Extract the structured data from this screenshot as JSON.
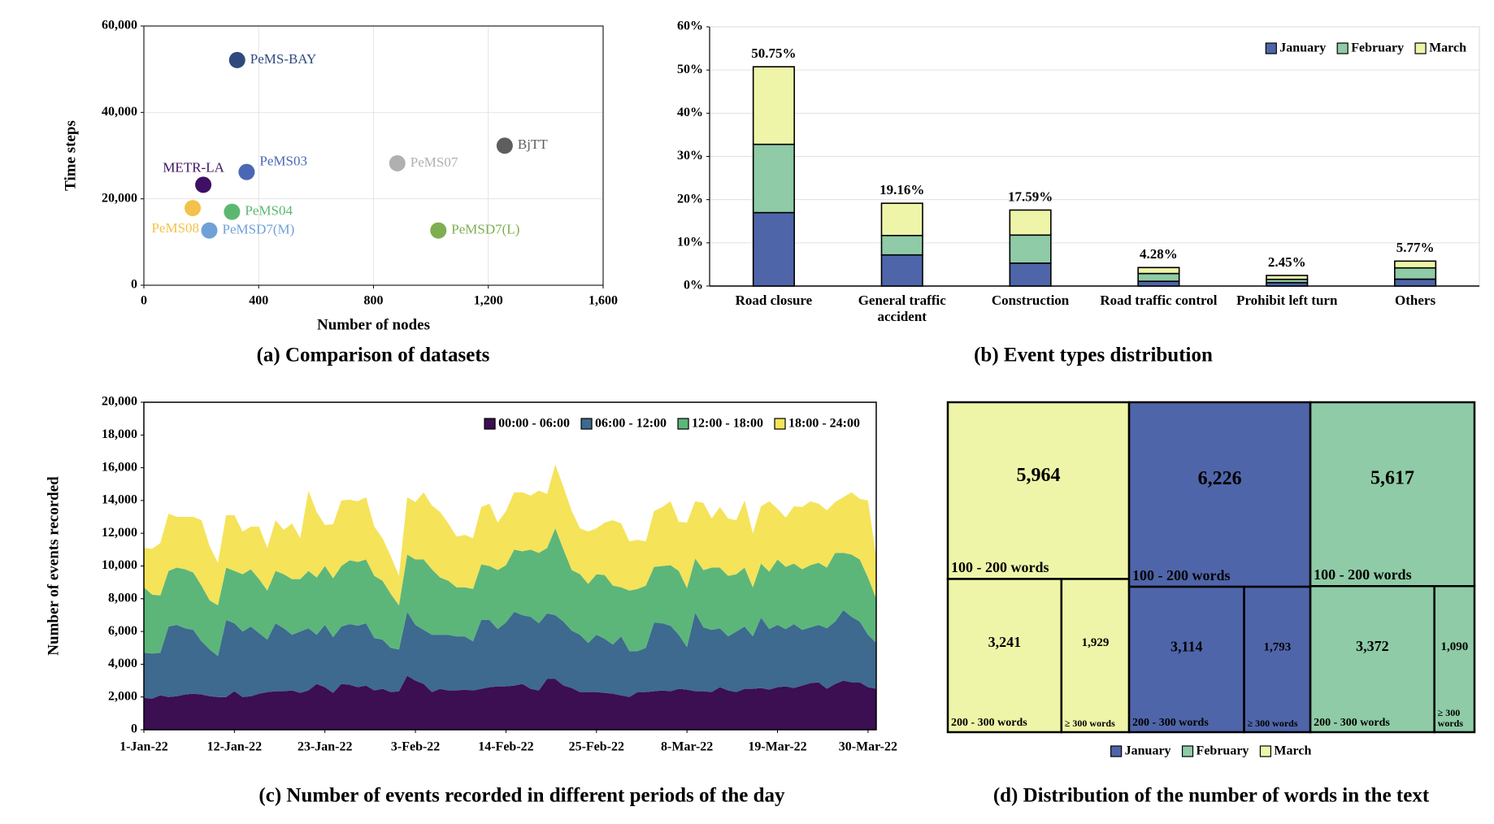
{
  "chart_data": [
    {
      "type": "scatter",
      "title": "(a) Comparison of datasets",
      "x_label": "Number of nodes",
      "y_label": "Time steps",
      "xlim": [
        0,
        1600
      ],
      "xticks": [
        0,
        400,
        800,
        {
          "value": 1200,
          "label": "1,200"
        },
        {
          "value": 1600,
          "label": "1,600"
        }
      ],
      "ylim": [
        0,
        60000
      ],
      "yticks": [
        0,
        {
          "value": 20000,
          "label": "20,000"
        },
        {
          "value": 40000,
          "label": "40,000"
        },
        {
          "value": 60000,
          "label": "60,000"
        }
      ],
      "grid": true,
      "series": [
        {
          "name": "PeMS-BAY",
          "color": "#2e4a7d",
          "x": [
            325
          ],
          "values": [
            52116
          ]
        },
        {
          "name": "BjTT",
          "color": "#5e5e5e",
          "x": [
            1257
          ],
          "values": [
            32300
          ]
        },
        {
          "name": "PeMS07",
          "color": "#b0b0b0",
          "x": [
            883
          ],
          "values": [
            28224
          ]
        },
        {
          "name": "PeMS03",
          "color": "#4a67b5",
          "x": [
            358
          ],
          "values": [
            26208
          ]
        },
        {
          "name": "METR-LA",
          "color": "#3d1063",
          "x": [
            207
          ],
          "values": [
            23250
          ]
        },
        {
          "name": "PeMS04",
          "color": "#5cb870",
          "x": [
            307
          ],
          "values": [
            16992
          ]
        },
        {
          "name": "PeMS08",
          "color": "#f3c24a",
          "x": [
            170
          ],
          "values": [
            17856
          ]
        },
        {
          "name": "PeMSD7(M)",
          "color": "#6fa1d8",
          "x": [
            228
          ],
          "values": [
            12672
          ]
        },
        {
          "name": "PeMSD7(L)",
          "color": "#7fae50",
          "x": [
            1026
          ],
          "values": [
            12672
          ]
        }
      ]
    },
    {
      "type": "bar",
      "title": "(b) Event types distribution",
      "stacked": true,
      "legend": "upper right",
      "grid": true,
      "categories": [
        "Road closure",
        "General traffic accident",
        "Construction",
        "Road traffic control",
        "Prohibit left turn",
        "Others"
      ],
      "ylim": [
        0,
        60
      ],
      "yticks": [
        {
          "value": 0,
          "label": "0%"
        },
        {
          "value": 10,
          "label": "10%"
        },
        {
          "value": 20,
          "label": "20%"
        },
        {
          "value": 30,
          "label": "30%"
        },
        {
          "value": 40,
          "label": "40%"
        },
        {
          "value": 50,
          "label": "50%"
        },
        {
          "value": 60,
          "label": "60%"
        }
      ],
      "series": [
        {
          "name": "January",
          "color": "#4f65a9",
          "values": [
            17,
            7.2,
            5.3,
            1.1,
            0.8,
            1.6
          ]
        },
        {
          "name": "February",
          "color": "#8ecba6",
          "values": [
            15.8,
            4.5,
            6.5,
            1.8,
            0.75,
            2.6
          ]
        },
        {
          "name": "March",
          "color": "#eef5a8",
          "values": [
            17.95,
            7.46,
            5.79,
            1.38,
            0.9,
            1.57
          ]
        }
      ],
      "totals": [
        50.75,
        19.16,
        17.59,
        4.28,
        2.45,
        5.77
      ],
      "value_labels": [
        "50.75%",
        "19.16%",
        "17.59%",
        "4.28%",
        "2.45%",
        "5.77%"
      ]
    },
    {
      "type": "area",
      "title": "(c) Number of events recorded in different periods of the day",
      "y_label": "Number of events recorded",
      "stacked": true,
      "legend": "upper right",
      "ylim": [
        0,
        20000
      ],
      "yticks": [
        0,
        {
          "value": 2000,
          "label": "2,000"
        },
        {
          "value": 4000,
          "label": "4,000"
        },
        {
          "value": 6000,
          "label": "6,000"
        },
        {
          "value": 8000,
          "label": "8,000"
        },
        {
          "value": 10000,
          "label": "10,000"
        },
        {
          "value": 12000,
          "label": "12,000"
        },
        {
          "value": 14000,
          "label": "14,000"
        },
        {
          "value": 16000,
          "label": "16,000"
        },
        {
          "value": 18000,
          "label": "18,000"
        },
        {
          "value": 20000,
          "label": "20,000"
        }
      ],
      "categories": [
        "1-Jan-22",
        null,
        null,
        null,
        null,
        null,
        null,
        null,
        null,
        null,
        null,
        "12-Jan-22",
        null,
        null,
        null,
        null,
        null,
        null,
        null,
        null,
        null,
        null,
        "23-Jan-22",
        null,
        null,
        null,
        null,
        null,
        null,
        null,
        null,
        null,
        null,
        "3-Feb-22",
        null,
        null,
        null,
        null,
        null,
        null,
        null,
        null,
        null,
        null,
        "14-Feb-22",
        null,
        null,
        null,
        null,
        null,
        null,
        null,
        null,
        null,
        null,
        "25-Feb-22",
        null,
        null,
        null,
        null,
        null,
        null,
        null,
        null,
        null,
        null,
        "8-Mar-22",
        null,
        null,
        null,
        null,
        null,
        null,
        null,
        null,
        null,
        null,
        "19-Mar-22",
        null,
        null,
        null,
        null,
        null,
        null,
        null,
        null,
        null,
        null,
        "30-Mar-22",
        null
      ],
      "series": [
        {
          "name": "00:00 - 06:00",
          "color": "#3b0f52",
          "values": [
            1950,
            1900,
            2100,
            2000,
            2050,
            2150,
            2200,
            2150,
            2050,
            2000,
            2000,
            2350,
            2000,
            2050,
            2200,
            2300,
            2350,
            2350,
            2400,
            2250,
            2400,
            2800,
            2600,
            2250,
            2800,
            2750,
            2600,
            2700,
            2400,
            2500,
            2300,
            2350,
            3300,
            3000,
            2800,
            2300,
            2500,
            2400,
            2400,
            2450,
            2400,
            2500,
            2600,
            2650,
            2650,
            2700,
            2800,
            2500,
            2400,
            3100,
            3100,
            2700,
            2550,
            2300,
            2300,
            2300,
            2250,
            2200,
            2100,
            2000,
            2300,
            2300,
            2350,
            2400,
            2350,
            2500,
            2450,
            2350,
            2350,
            2300,
            2600,
            2400,
            2300,
            2500,
            2500,
            2550,
            2450,
            2600,
            2650,
            2550,
            2700,
            2850,
            2900,
            2500,
            2800,
            3000,
            2900,
            2900,
            2600,
            2500
          ]
        },
        {
          "name": "06:00 - 12:00",
          "color": "#3d6a8e",
          "values": [
            2750,
            2750,
            2600,
            4300,
            4350,
            4050,
            3900,
            3250,
            2850,
            2500,
            4700,
            4150,
            4000,
            4250,
            3700,
            3200,
            4150,
            3850,
            3400,
            3750,
            3800,
            3000,
            3800,
            3400,
            3500,
            3700,
            3750,
            3800,
            3200,
            3000,
            2700,
            2550,
            3900,
            3400,
            3300,
            3500,
            3300,
            3400,
            3300,
            3250,
            3000,
            4200,
            4100,
            3500,
            3900,
            4500,
            4200,
            4400,
            4100,
            4000,
            3900,
            3900,
            3500,
            3500,
            3000,
            3500,
            3300,
            3000,
            3600,
            2800,
            2500,
            2700,
            4200,
            4100,
            4000,
            3300,
            2600,
            4800,
            3900,
            3800,
            3600,
            3300,
            3700,
            3800,
            3200,
            4300,
            3700,
            3800,
            3500,
            3900,
            3400,
            3400,
            3500,
            3700,
            3800,
            4300,
            4000,
            3700,
            3200,
            2800
          ]
        },
        {
          "name": "12:00 - 18:00",
          "color": "#5cb67a",
          "values": [
            4000,
            3600,
            3500,
            3400,
            3500,
            3600,
            3500,
            3400,
            3000,
            3100,
            3200,
            3200,
            3500,
            3500,
            3300,
            3000,
            3200,
            3300,
            3400,
            3200,
            3500,
            3500,
            3600,
            3600,
            3700,
            3900,
            3900,
            3900,
            3800,
            3600,
            3300,
            2700,
            3500,
            4000,
            4300,
            4000,
            3500,
            3300,
            3000,
            3000,
            3200,
            3400,
            3300,
            3600,
            3500,
            3800,
            3900,
            4100,
            4300,
            4000,
            5300,
            4400,
            3700,
            3700,
            3600,
            3700,
            3900,
            3600,
            3000,
            3700,
            3800,
            3800,
            3400,
            3500,
            3700,
            3900,
            3600,
            3300,
            3500,
            3800,
            3700,
            3700,
            3500,
            3600,
            3000,
            3300,
            3500,
            4000,
            3800,
            3700,
            3700,
            3800,
            3800,
            3700,
            4200,
            3500,
            3800,
            3800,
            3500,
            2700
          ]
        },
        {
          "name": "18:00 - 24:00",
          "color": "#f5e35a",
          "values": [
            2400,
            2800,
            3200,
            3500,
            3100,
            3200,
            3400,
            4000,
            3300,
            2600,
            3200,
            3400,
            2600,
            2600,
            3200,
            2600,
            3100,
            2700,
            3400,
            2500,
            4900,
            4000,
            2500,
            3300,
            4000,
            3700,
            3700,
            3800,
            3000,
            2600,
            2300,
            1800,
            3500,
            3500,
            4100,
            3900,
            4000,
            3500,
            3100,
            3200,
            3100,
            3500,
            3800,
            2900,
            3300,
            3500,
            3600,
            3300,
            3800,
            3300,
            3900,
            3800,
            3600,
            2800,
            3200,
            2800,
            3200,
            4000,
            3900,
            3000,
            3000,
            2700,
            3400,
            3600,
            3900,
            3000,
            4000,
            3500,
            4100,
            3000,
            3700,
            3500,
            3300,
            4100,
            3300,
            3500,
            4300,
            3100,
            3000,
            3500,
            3800,
            3900,
            3600,
            3500,
            3100,
            3400,
            3800,
            3700,
            4700,
            2500
          ]
        }
      ]
    },
    {
      "type": "treemap",
      "title": "(d) Distribution of the number of words in the text",
      "legend": "bottom",
      "categories": [
        "100 - 200 words",
        "200 - 300 words",
        "≥ 300 words"
      ],
      "series": [
        {
          "name": "January",
          "color": "#4f65a9",
          "values": [
            6226,
            3114,
            1793
          ],
          "value_labels": [
            "6,226",
            "3,114",
            "1,793"
          ]
        },
        {
          "name": "February",
          "color": "#8ecba6",
          "values": [
            5617,
            3372,
            1090
          ],
          "value_labels": [
            "5,617",
            "3,372",
            "1,090"
          ]
        },
        {
          "name": "March",
          "color": "#eef5a8",
          "values": [
            5964,
            3241,
            1929
          ],
          "value_labels": [
            "5,964",
            "3,241",
            "1,929"
          ]
        }
      ]
    }
  ]
}
